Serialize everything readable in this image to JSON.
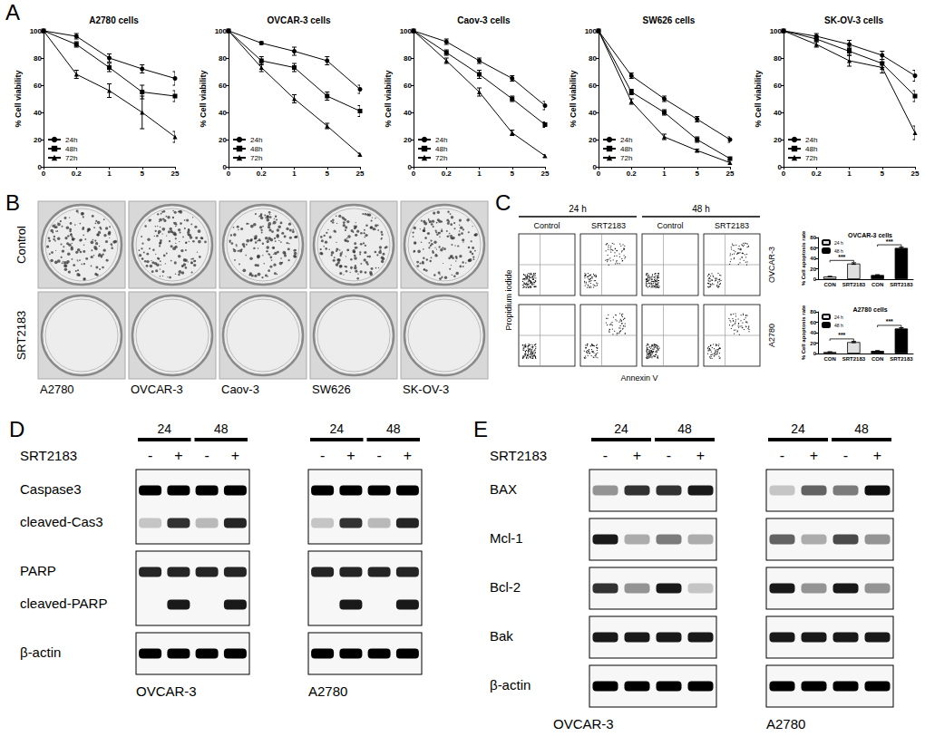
{
  "panel_labels": [
    "A",
    "B",
    "C",
    "D",
    "E"
  ],
  "chart_data": [
    {
      "type": "line",
      "title": "A2780 cells",
      "y_label": "% Cell viability",
      "categories": [
        "0",
        "0.2",
        "1",
        "5",
        "25"
      ],
      "ylim": [
        0,
        100
      ],
      "yticks": [
        0,
        20,
        40,
        60,
        80,
        100
      ],
      "grid": false,
      "legend": "bottom-left",
      "series": [
        {
          "name": "24h",
          "color": "#000000",
          "marker": "circle",
          "values": [
            100,
            96,
            80,
            72,
            65
          ],
          "errors": [
            0,
            2,
            3,
            3,
            5
          ]
        },
        {
          "name": "48h",
          "color": "#000000",
          "marker": "square",
          "values": [
            100,
            90,
            73,
            55,
            52
          ],
          "errors": [
            0,
            2,
            3,
            5,
            4
          ]
        },
        {
          "name": "72h",
          "color": "#000000",
          "marker": "triangle",
          "values": [
            100,
            68,
            56,
            40,
            22
          ],
          "errors": [
            0,
            3,
            5,
            12,
            4
          ]
        }
      ]
    },
    {
      "type": "line",
      "title": "OVCAR-3 cells",
      "y_label": "% Cell viability",
      "categories": [
        "0",
        "0.2",
        "1",
        "5",
        "25"
      ],
      "ylim": [
        0,
        100
      ],
      "yticks": [
        0,
        20,
        40,
        60,
        80,
        100
      ],
      "grid": false,
      "legend": "bottom-left",
      "series": [
        {
          "name": "24h",
          "color": "#000000",
          "marker": "circle",
          "values": [
            100,
            91,
            85,
            78,
            57
          ],
          "errors": [
            0,
            1,
            3,
            3,
            3
          ]
        },
        {
          "name": "48h",
          "color": "#000000",
          "marker": "square",
          "values": [
            100,
            78,
            73,
            52,
            41
          ],
          "errors": [
            0,
            3,
            3,
            3,
            4
          ]
        },
        {
          "name": "72h",
          "color": "#000000",
          "marker": "triangle",
          "values": [
            100,
            73,
            50,
            30,
            9
          ],
          "errors": [
            0,
            3,
            3,
            2,
            1
          ]
        }
      ]
    },
    {
      "type": "line",
      "title": "Caov-3 cells",
      "y_label": "% Cell viability",
      "categories": [
        "0",
        "0.2",
        "1",
        "5",
        "25"
      ],
      "ylim": [
        0,
        100
      ],
      "yticks": [
        0,
        20,
        40,
        60,
        80,
        100
      ],
      "grid": false,
      "legend": "bottom-left",
      "series": [
        {
          "name": "24h",
          "color": "#000000",
          "marker": "circle",
          "values": [
            100,
            92,
            78,
            65,
            45
          ],
          "errors": [
            0,
            2,
            2,
            2,
            3
          ]
        },
        {
          "name": "48h",
          "color": "#000000",
          "marker": "square",
          "values": [
            100,
            84,
            68,
            50,
            31
          ],
          "errors": [
            0,
            2,
            3,
            2,
            2
          ]
        },
        {
          "name": "72h",
          "color": "#000000",
          "marker": "triangle",
          "values": [
            100,
            78,
            55,
            25,
            8
          ],
          "errors": [
            0,
            2,
            3,
            2,
            1
          ]
        }
      ]
    },
    {
      "type": "line",
      "title": "SW626 cells",
      "y_label": "% Cell viability",
      "categories": [
        "0",
        "0.2",
        "1",
        "5",
        "25"
      ],
      "ylim": [
        0,
        100
      ],
      "yticks": [
        0,
        20,
        40,
        60,
        80,
        100
      ],
      "grid": false,
      "legend": "bottom-left",
      "series": [
        {
          "name": "24h",
          "color": "#000000",
          "marker": "circle",
          "values": [
            100,
            67,
            50,
            35,
            20
          ],
          "errors": [
            0,
            2,
            2,
            2,
            2
          ]
        },
        {
          "name": "48h",
          "color": "#000000",
          "marker": "square",
          "values": [
            100,
            55,
            40,
            20,
            6
          ],
          "errors": [
            0,
            2,
            2,
            2,
            1
          ]
        },
        {
          "name": "72h",
          "color": "#000000",
          "marker": "triangle",
          "values": [
            100,
            48,
            22,
            12,
            3
          ],
          "errors": [
            0,
            2,
            2,
            1,
            1
          ]
        }
      ]
    },
    {
      "type": "line",
      "title": "SK-OV-3 cells",
      "y_label": "% Cell viability",
      "categories": [
        "0",
        "0.2",
        "1",
        "5",
        "25"
      ],
      "ylim": [
        0,
        100
      ],
      "yticks": [
        0,
        20,
        40,
        60,
        80,
        100
      ],
      "grid": false,
      "legend": "bottom-left",
      "series": [
        {
          "name": "24h",
          "color": "#000000",
          "marker": "circle",
          "values": [
            100,
            96,
            90,
            82,
            67
          ],
          "errors": [
            0,
            2,
            3,
            3,
            4
          ]
        },
        {
          "name": "48h",
          "color": "#000000",
          "marker": "square",
          "values": [
            100,
            94,
            85,
            76,
            52
          ],
          "errors": [
            0,
            2,
            3,
            3,
            4
          ]
        },
        {
          "name": "72h",
          "color": "#000000",
          "marker": "triangle",
          "values": [
            100,
            90,
            78,
            73,
            25
          ],
          "errors": [
            0,
            2,
            4,
            4,
            5
          ]
        }
      ]
    },
    {
      "type": "bar",
      "title": "OVCAR-3 cells",
      "y_label": "% Cell apoptosis rate",
      "categories": [
        "CON",
        "SRT2183",
        "CON",
        "SRT2183"
      ],
      "ylim": [
        0,
        80
      ],
      "yticks": [
        0,
        20,
        40,
        60,
        80
      ],
      "grid": false,
      "legend": "top-left",
      "series": [
        {
          "name": "24 h",
          "color": "#e0e0e0",
          "values": [
            5,
            30,
            null,
            null
          ],
          "errors": [
            0.5,
            1.5,
            null,
            null
          ]
        },
        {
          "name": "48 h",
          "color": "#000000",
          "values": [
            null,
            null,
            8,
            60
          ],
          "errors": [
            null,
            null,
            0.6,
            1.5
          ]
        }
      ],
      "annotations": [
        {
          "text": "***",
          "from": 0,
          "to": 1,
          "y": 36
        },
        {
          "text": "***",
          "from": 2,
          "to": 3,
          "y": 66
        }
      ]
    },
    {
      "type": "bar",
      "title": "A2780 cells",
      "y_label": "% Cell apoptosis rate",
      "categories": [
        "CON",
        "SRT2183",
        "CON",
        "SRT2183"
      ],
      "ylim": [
        0,
        80
      ],
      "yticks": [
        0,
        20,
        40,
        60,
        80
      ],
      "grid": false,
      "legend": "top-left",
      "series": [
        {
          "name": "24 h",
          "color": "#e0e0e0",
          "values": [
            3,
            22,
            null,
            null
          ],
          "errors": [
            0.4,
            1.2,
            null,
            null
          ]
        },
        {
          "name": "48 h",
          "color": "#000000",
          "values": [
            null,
            null,
            5,
            48
          ],
          "errors": [
            null,
            null,
            0.5,
            1.5
          ]
        }
      ],
      "annotations": [
        {
          "text": "***",
          "from": 0,
          "to": 1,
          "y": 28
        },
        {
          "text": "***",
          "from": 2,
          "to": 3,
          "y": 54
        }
      ]
    }
  ],
  "colony": {
    "rows": [
      "Control",
      "SRT2183"
    ],
    "cell_lines": [
      "A2780",
      "OVCAR-3",
      "Caov-3",
      "SW626",
      "SK-OV-3"
    ]
  },
  "flow": {
    "times": [
      "24 h",
      "48 h"
    ],
    "conditions": [
      "Control",
      "SRT2183"
    ],
    "rows": [
      "OVCAR-3",
      "A2780"
    ],
    "y_label": "Propidium iodide",
    "x_label": "Annexin V"
  },
  "blots": [
    {
      "panel": "D",
      "times": [
        "24",
        "48"
      ],
      "treatment": "SRT2183",
      "signs": [
        "-",
        "+",
        "-",
        "+"
      ],
      "boxes": [
        [
          "Caspase3",
          "cleaved-Cas3"
        ],
        [
          "PARP",
          "cleaved-PARP"
        ],
        [
          "β-actin"
        ]
      ],
      "cell_lines": [
        {
          "name": "OVCAR-3",
          "bands": [
            [
              [
                1,
                1,
                1,
                1
              ],
              [
                0.2,
                0.8,
                0.25,
                0.85
              ]
            ],
            [
              [
                0.85,
                0.85,
                0.85,
                0.85
              ],
              [
                0,
                0.9,
                0,
                0.9
              ]
            ],
            [
              [
                1,
                1,
                1,
                1
              ]
            ]
          ]
        },
        {
          "name": "A2780",
          "bands": [
            [
              [
                1,
                1,
                1,
                1
              ],
              [
                0.2,
                0.8,
                0.25,
                0.85
              ]
            ],
            [
              [
                0.85,
                0.85,
                0.85,
                0.85
              ],
              [
                0,
                0.9,
                0,
                0.9
              ]
            ],
            [
              [
                1,
                1,
                1,
                1
              ]
            ]
          ]
        }
      ]
    },
    {
      "panel": "E",
      "times": [
        "24",
        "48"
      ],
      "treatment": "SRT2183",
      "signs": [
        "-",
        "+",
        "-",
        "+"
      ],
      "boxes": [
        [
          "BAX"
        ],
        [
          "Mcl-1"
        ],
        [
          "Bcl-2"
        ],
        [
          "Bak"
        ],
        [
          "β-actin"
        ]
      ],
      "cell_lines": [
        {
          "name": "OVCAR-3",
          "bands": [
            [
              [
                0.4,
                0.8,
                0.8,
                0.9
              ]
            ],
            [
              [
                0.9,
                0.3,
                0.5,
                0.3
              ]
            ],
            [
              [
                0.8,
                0.4,
                0.9,
                0.2
              ]
            ],
            [
              [
                0.9,
                0.9,
                0.9,
                0.9
              ]
            ],
            [
              [
                1,
                1,
                1,
                1
              ]
            ]
          ]
        },
        {
          "name": "A2780",
          "bands": [
            [
              [
                0.2,
                0.6,
                0.5,
                0.95
              ]
            ],
            [
              [
                0.6,
                0.3,
                0.7,
                0.4
              ]
            ],
            [
              [
                0.9,
                0.4,
                0.9,
                0.4
              ]
            ],
            [
              [
                0.9,
                0.9,
                0.9,
                0.9
              ]
            ],
            [
              [
                1,
                1,
                1,
                1
              ]
            ]
          ]
        }
      ]
    }
  ]
}
